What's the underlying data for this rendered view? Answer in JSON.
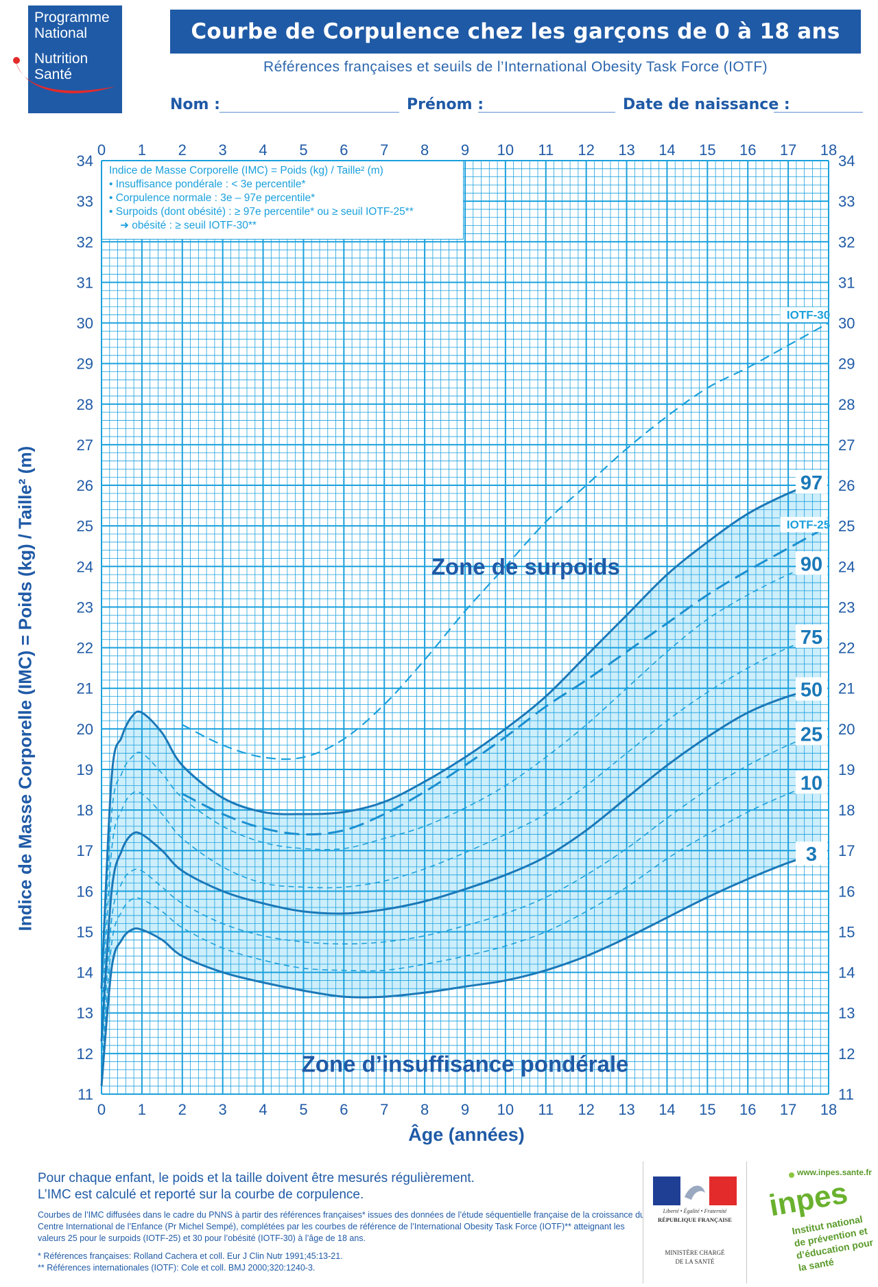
{
  "logo": {
    "line1": "Programme",
    "line2": "National",
    "line3": "Nutrition",
    "line4": "Santé"
  },
  "title": "Courbe de Corpulence chez les garçons de 0 à 18 ans",
  "subtitle": "Références françaises et seuils de l’International Obesity Task Force (IOTF)",
  "form": {
    "name_label": "Nom :",
    "firstname_label": "Prénom :",
    "birthdate_label": "Date de naissance :"
  },
  "legend": {
    "title": "Indice de Masse Corporelle (IMC) = Poids (kg) / Taille² (m)",
    "items": [
      "• Insuffisance pondérale : < 3e percentile*",
      "• Corpulence normale : 3e – 97e percentile*",
      "• Surpoids (dont obésité) : ≥ 97e percentile* ou ≥ seuil IOTF-25**",
      "➜ obésité : ≥ seuil IOTF-30**"
    ]
  },
  "colors": {
    "title_bar": "#1f5aa6",
    "grid": "#1aa0dc",
    "band": "#cdeefb",
    "curve": "#1a78b8",
    "brand_red": "#e32b2b"
  },
  "chart_data": {
    "type": "line",
    "xlabel": "Âge (années)",
    "ylabel": "Indice de Masse Corporelle (IMC) = Poids (kg) / Taille² (m)",
    "xlim": [
      0,
      18
    ],
    "ylim": [
      11,
      34
    ],
    "x_ticks": [
      0,
      1,
      2,
      3,
      4,
      5,
      6,
      7,
      8,
      9,
      10,
      11,
      12,
      13,
      14,
      15,
      16,
      17,
      18
    ],
    "y_ticks": [
      11,
      12,
      13,
      14,
      15,
      16,
      17,
      18,
      19,
      20,
      21,
      22,
      23,
      24,
      25,
      26,
      27,
      28,
      29,
      30,
      31,
      32,
      33,
      34
    ],
    "zones": [
      "Zone de surpoids",
      "Zone d’insuffisance pondérale"
    ],
    "series": [
      {
        "name": "97",
        "style": "solid-bold",
        "x": [
          0,
          0.25,
          0.5,
          0.75,
          1,
          1.5,
          2,
          3,
          4,
          5,
          6,
          7,
          8,
          9,
          10,
          11,
          12,
          13,
          14,
          15,
          16,
          17,
          17.8
        ],
        "y": [
          13.6,
          18.8,
          19.8,
          20.3,
          20.4,
          19.9,
          19.1,
          18.3,
          17.95,
          17.9,
          17.95,
          18.2,
          18.7,
          19.3,
          20.0,
          20.8,
          21.8,
          22.8,
          23.8,
          24.6,
          25.3,
          25.8,
          26.1
        ]
      },
      {
        "name": "90",
        "style": "dashed-thin",
        "x": [
          0,
          0.25,
          0.5,
          0.75,
          1,
          1.5,
          2,
          3,
          4,
          5,
          6,
          7,
          8,
          9,
          10,
          11,
          12,
          13,
          14,
          15,
          16,
          17,
          17.8
        ],
        "y": [
          13.2,
          17.9,
          18.9,
          19.3,
          19.4,
          18.9,
          18.3,
          17.6,
          17.2,
          17.05,
          17.05,
          17.3,
          17.6,
          18.05,
          18.6,
          19.3,
          20.1,
          21.0,
          21.9,
          22.7,
          23.3,
          23.8,
          24.1
        ]
      },
      {
        "name": "75",
        "style": "dashed-thin",
        "x": [
          0,
          0.25,
          0.5,
          0.75,
          1,
          1.5,
          2,
          3,
          4,
          5,
          6,
          7,
          8,
          9,
          10,
          11,
          12,
          13,
          14,
          15,
          16,
          17,
          17.8
        ],
        "y": [
          12.8,
          17.0,
          18.0,
          18.4,
          18.4,
          17.9,
          17.3,
          16.6,
          16.2,
          16.1,
          16.1,
          16.25,
          16.55,
          16.95,
          17.4,
          17.9,
          18.6,
          19.4,
          20.2,
          20.9,
          21.5,
          22.0,
          22.3
        ]
      },
      {
        "name": "50",
        "style": "solid-bold",
        "x": [
          0,
          0.25,
          0.5,
          0.75,
          1,
          1.5,
          2,
          3,
          4,
          5,
          6,
          7,
          8,
          9,
          10,
          11,
          12,
          13,
          14,
          15,
          16,
          17,
          17.8
        ],
        "y": [
          12.3,
          16.0,
          17.0,
          17.4,
          17.4,
          17.0,
          16.5,
          16.0,
          15.7,
          15.5,
          15.45,
          15.55,
          15.75,
          16.05,
          16.4,
          16.85,
          17.5,
          18.3,
          19.1,
          19.8,
          20.4,
          20.8,
          21.0
        ]
      },
      {
        "name": "25",
        "style": "dashed-thin",
        "x": [
          0,
          0.25,
          0.5,
          0.75,
          1,
          1.5,
          2,
          3,
          4,
          5,
          6,
          7,
          8,
          9,
          10,
          11,
          12,
          13,
          14,
          15,
          16,
          17,
          17.8
        ],
        "y": [
          11.9,
          15.3,
          16.2,
          16.5,
          16.5,
          16.1,
          15.7,
          15.2,
          14.9,
          14.75,
          14.7,
          14.75,
          14.9,
          15.15,
          15.45,
          15.85,
          16.4,
          17.05,
          17.8,
          18.5,
          19.1,
          19.6,
          19.9
        ]
      },
      {
        "name": "10",
        "style": "dashed-thin",
        "x": [
          0,
          0.25,
          0.5,
          0.75,
          1,
          1.5,
          2,
          3,
          4,
          5,
          6,
          7,
          8,
          9,
          10,
          11,
          12,
          13,
          14,
          15,
          16,
          17,
          17.8
        ],
        "y": [
          11.6,
          14.7,
          15.5,
          15.8,
          15.8,
          15.5,
          15.1,
          14.6,
          14.3,
          14.1,
          14.05,
          14.05,
          14.2,
          14.4,
          14.65,
          15.0,
          15.5,
          16.1,
          16.8,
          17.4,
          17.95,
          18.4,
          18.7
        ]
      },
      {
        "name": "3",
        "style": "solid-bold",
        "x": [
          0,
          0.25,
          0.5,
          0.75,
          1,
          1.5,
          2,
          3,
          4,
          5,
          6,
          7,
          8,
          9,
          10,
          11,
          12,
          13,
          14,
          15,
          16,
          17,
          17.8
        ],
        "y": [
          11.2,
          14.1,
          14.8,
          15.05,
          15.05,
          14.8,
          14.4,
          14.0,
          13.75,
          13.55,
          13.4,
          13.4,
          13.5,
          13.65,
          13.8,
          14.05,
          14.4,
          14.85,
          15.35,
          15.85,
          16.3,
          16.7,
          16.95
        ]
      },
      {
        "name": "IOTF-25",
        "style": "dashed-bold",
        "x": [
          2,
          3,
          4,
          5,
          6,
          7,
          8,
          9,
          10,
          11,
          12,
          13,
          14,
          15,
          16,
          17,
          18
        ],
        "y": [
          18.4,
          17.9,
          17.55,
          17.4,
          17.5,
          17.9,
          18.45,
          19.1,
          19.8,
          20.55,
          21.2,
          21.9,
          22.6,
          23.3,
          23.9,
          24.45,
          25.0
        ]
      },
      {
        "name": "IOTF-30",
        "style": "dashed-medium",
        "x": [
          2,
          3,
          4,
          5,
          6,
          7,
          8,
          9,
          10,
          11,
          12,
          13,
          14,
          15,
          16,
          17,
          18
        ],
        "y": [
          20.1,
          19.6,
          19.3,
          19.3,
          19.75,
          20.6,
          21.7,
          22.9,
          24.0,
          25.1,
          26.0,
          26.9,
          27.7,
          28.4,
          28.9,
          29.45,
          30.0
        ]
      }
    ]
  },
  "footer": {
    "main_1": "Pour chaque enfant, le poids et la taille doivent être mesurés régulièrement.",
    "main_2": "L’IMC est calculé et reporté sur la courbe de corpulence.",
    "small": "Courbes de l’IMC diffusées dans le cadre du PNNS à partir des références françaises* issues des données de l’étude séquentielle française de la croissance du Centre International de l’Enfance (Pr Michel Sempé), complétées par les courbes de référence de l’International Obesity Task Force (IOTF)** atteignant les valeurs 25 pour le surpoids (IOTF-25) et 30 pour l’obésité (IOTF-30) à l’âge de 18 ans.",
    "ref1": "* Références françaises: Rolland Cachera et coll. Eur J Clin Nutr 1991;45:13-21.",
    "ref2": "** Références internationales (IOTF): Cole et coll. BMJ 2000;320:1240-3."
  },
  "rf": {
    "motto": "Liberté • Égalité • Fraternité",
    "name": "RÉPUBLIQUE FRANÇAISE",
    "ministry_1": "MINISTÈRE CHARGÉ",
    "ministry_2": "DE LA SANTÉ"
  },
  "inpes": {
    "url": "www.inpes.sante.fr",
    "brand": "inpes",
    "line1": "Institut national",
    "line2": "de prévention et",
    "line3": "d’éducation pour",
    "line4": "la santé"
  }
}
